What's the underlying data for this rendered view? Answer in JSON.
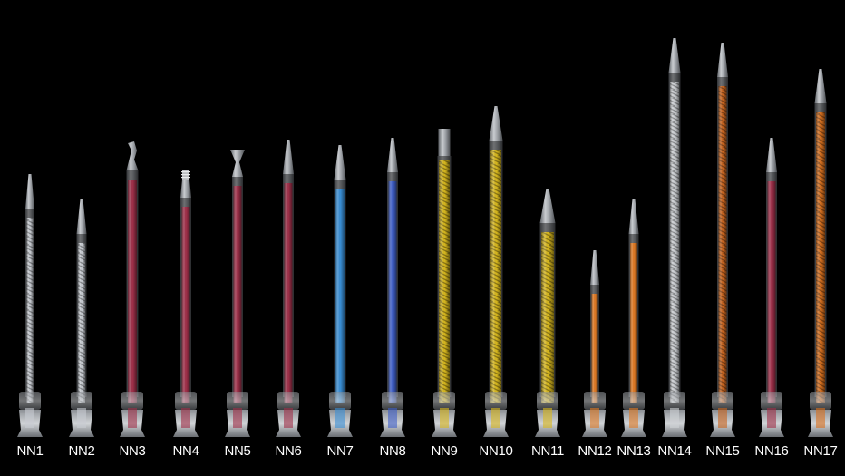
{
  "background_color": "#000000",
  "mixing_tips": [
    {
      "label": "NN1",
      "element_color": "#c8ccd2",
      "element_pattern": "helix",
      "nozzle": "taper"
    },
    {
      "label": "NN2",
      "element_color": "#c8ccd2",
      "element_pattern": "helix",
      "nozzle": "taper"
    },
    {
      "label": "NN3",
      "element_color": "#a0304a",
      "element_pattern": "solid",
      "nozzle": "bent-tip"
    },
    {
      "label": "NN4",
      "element_color": "#a0304a",
      "element_pattern": "solid",
      "nozzle": "luer-lock"
    },
    {
      "label": "NN5",
      "element_color": "#a0304a",
      "element_pattern": "solid",
      "nozzle": "flared-tip"
    },
    {
      "label": "NN6",
      "element_color": "#a0304a",
      "element_pattern": "solid",
      "nozzle": "taper"
    },
    {
      "label": "NN7",
      "element_color": "#3a8fd6",
      "element_pattern": "solid",
      "nozzle": "taper"
    },
    {
      "label": "NN8",
      "element_color": "#3f5fc8",
      "element_pattern": "solid",
      "nozzle": "taper"
    },
    {
      "label": "NN9",
      "element_color": "#d8b81e",
      "element_pattern": "helix",
      "nozzle": "straight-tube"
    },
    {
      "label": "NN10",
      "element_color": "#d8b81e",
      "element_pattern": "helix",
      "nozzle": "taper"
    },
    {
      "label": "NN11",
      "element_color": "#d8b81e",
      "element_pattern": "helix",
      "nozzle": "taper"
    },
    {
      "label": "NN12",
      "element_color": "#e07a24",
      "element_pattern": "solid",
      "nozzle": "taper"
    },
    {
      "label": "NN13",
      "element_color": "#e07a24",
      "element_pattern": "solid",
      "nozzle": "taper"
    },
    {
      "label": "NN14",
      "element_color": "#cfd2d6",
      "element_pattern": "helix",
      "nozzle": "taper"
    },
    {
      "label": "NN15",
      "element_color": "#c8641e",
      "element_pattern": "helix",
      "nozzle": "taper"
    },
    {
      "label": "NN16",
      "element_color": "#a0304a",
      "element_pattern": "solid",
      "nozzle": "taper"
    },
    {
      "label": "NN17",
      "element_color": "#d8701e",
      "element_pattern": "helix",
      "nozzle": "taper"
    }
  ]
}
